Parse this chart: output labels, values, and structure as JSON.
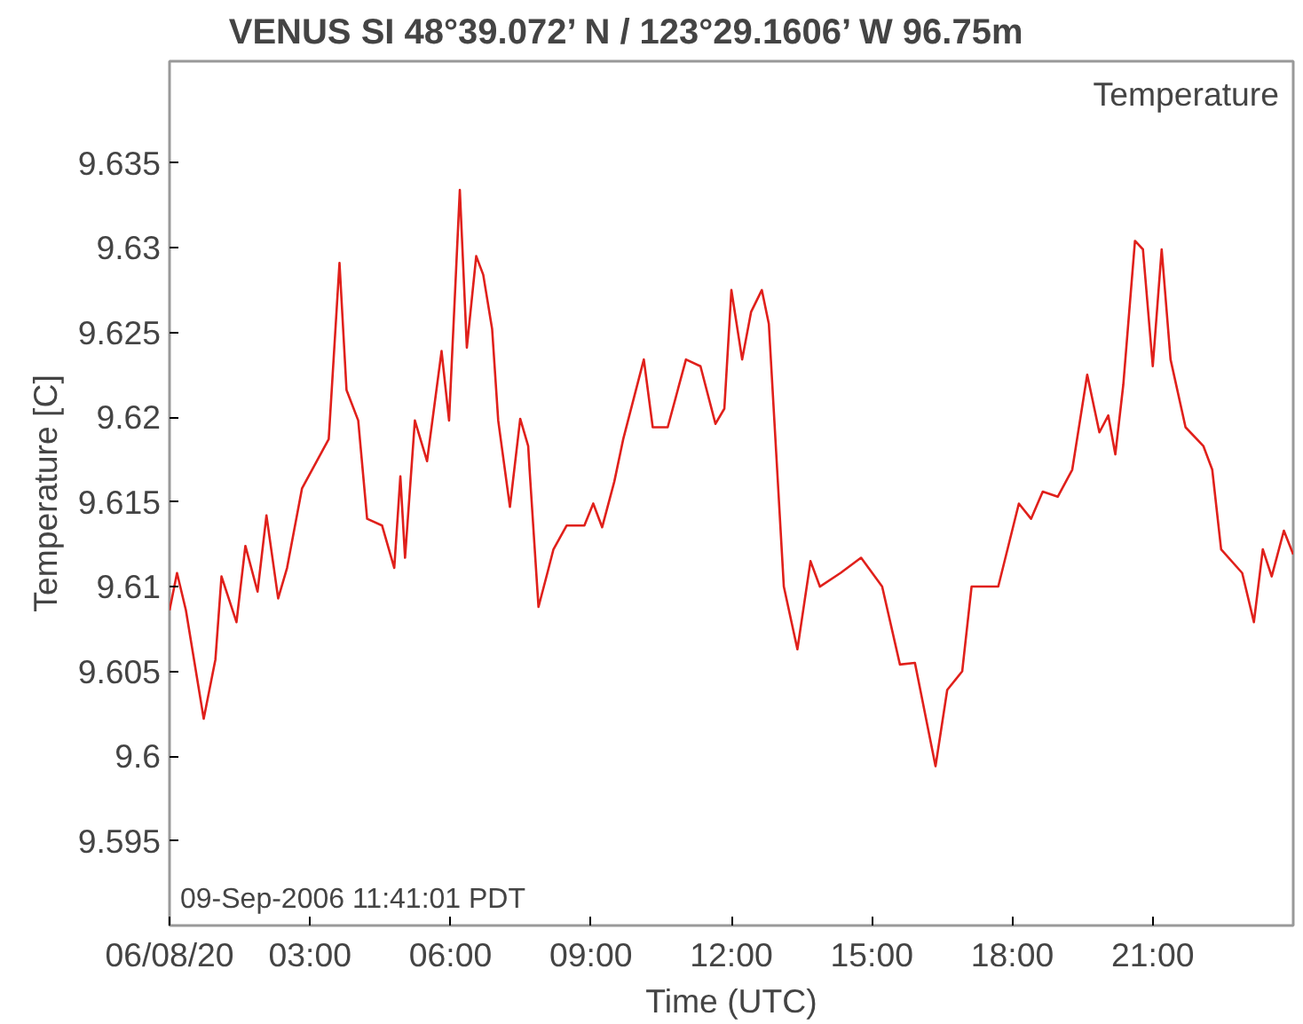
{
  "chart_data": {
    "type": "line",
    "title": "VENUS        SI        48°39.072’ N / 123°29.1606’ W        96.75m",
    "xlabel": "Time (UTC)",
    "ylabel": "Temperature [C]",
    "annotations": [
      "Temperature",
      "09-Sep-2006 11:41:01 PDT"
    ],
    "x": [
      0,
      0.16,
      0.35,
      0.73,
      0.98,
      1.11,
      1.43,
      1.62,
      1.88,
      2.07,
      2.32,
      2.51,
      2.83,
      3.4,
      3.63,
      3.78,
      4.03,
      4.22,
      4.54,
      4.8,
      4.93,
      5.03,
      5.24,
      5.5,
      5.81,
      5.97,
      6.2,
      6.35,
      6.55,
      6.7,
      6.89,
      7.02,
      7.27,
      7.49,
      7.66,
      7.69,
      7.88,
      8.07,
      8.2,
      8.48,
      8.86,
      9.05,
      9.24,
      9.5,
      9.69,
      10.13,
      10.32,
      10.64,
      11.03,
      11.34,
      11.66,
      11.85,
      12.0,
      12.23,
      12.42,
      12.65,
      12.8,
      13.12,
      13.41,
      13.69,
      13.89,
      14.33,
      14.77,
      15.22,
      15.6,
      15.92,
      16.36,
      16.61,
      16.93,
      17.13,
      17.7,
      18.14,
      18.4,
      18.65,
      18.97,
      19.28,
      19.6,
      19.86,
      20.05,
      20.2,
      20.37,
      20.62,
      20.79,
      21.0,
      21.19,
      21.38,
      21.7,
      22.08,
      22.27,
      22.46,
      22.91,
      23.16,
      23.35,
      23.54,
      23.8,
      24.0
    ],
    "series": [
      {
        "color": "#e0201b",
        "values": [
          9.6086,
          9.6108,
          9.6086,
          9.6022,
          9.6057,
          9.6106,
          9.6079,
          9.6124,
          9.6097,
          9.6142,
          9.6093,
          9.6111,
          9.6158,
          9.6187,
          9.6291,
          9.6216,
          9.6198,
          9.614,
          9.6136,
          9.6111,
          9.6165,
          9.6117,
          9.6198,
          9.6174,
          9.6239,
          9.6198,
          9.6334,
          9.6241,
          9.6295,
          9.6284,
          9.6252,
          9.6198,
          9.6147,
          9.6199,
          9.6183,
          9.6169,
          9.6088,
          9.6108,
          9.6122,
          9.6136,
          9.6136,
          9.6149,
          9.6135,
          9.6162,
          9.6187,
          9.6234,
          9.6194,
          9.6194,
          9.6234,
          9.623,
          9.6196,
          9.6205,
          9.6275,
          9.6234,
          9.6262,
          9.6275,
          9.6255,
          9.61,
          9.6063,
          9.6115,
          9.61,
          9.6108,
          9.6117,
          9.61,
          9.6054,
          9.6055,
          9.5994,
          9.6039,
          9.605,
          9.61,
          9.61,
          9.6149,
          9.614,
          9.6156,
          9.6153,
          9.6169,
          9.6225,
          9.6191,
          9.6201,
          9.6178,
          9.6219,
          9.6304,
          9.6299,
          9.623,
          9.6299,
          9.6234,
          9.6194,
          9.6183,
          9.6169,
          9.6122,
          9.6108,
          9.6079,
          9.6122,
          9.6106,
          9.6133,
          9.6119
        ]
      }
    ],
    "xlim": [
      0,
      24
    ],
    "xticks": [
      {
        "value": 0,
        "label": "06/08/20"
      },
      {
        "value": 3,
        "label": "03:00"
      },
      {
        "value": 6,
        "label": "06:00"
      },
      {
        "value": 9,
        "label": "09:00"
      },
      {
        "value": 12,
        "label": "12:00"
      },
      {
        "value": 15,
        "label": "15:00"
      },
      {
        "value": 18,
        "label": "18:00"
      },
      {
        "value": 21,
        "label": "21:00"
      }
    ],
    "ylim": [
      9.59,
      9.641
    ],
    "yticks": [
      9.595,
      9.6,
      9.605,
      9.61,
      9.615,
      9.62,
      9.625,
      9.63,
      9.635
    ],
    "grid": false,
    "marker": "none",
    "line_style": "solid"
  }
}
